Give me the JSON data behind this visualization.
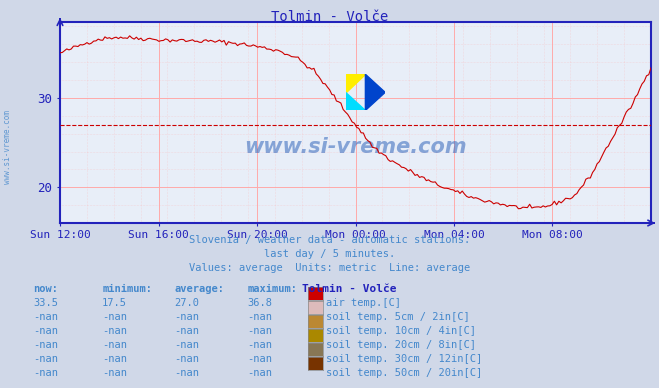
{
  "title": "Tolmin - Volče",
  "bg_color": "#d0d8e8",
  "plot_bg_color": "#e8eef8",
  "line_color": "#cc0000",
  "avg_line_value": 27.0,
  "y_min": 16,
  "y_max": 38.5,
  "yticks": [
    20,
    30
  ],
  "grid_color": "#ffaaaa",
  "text_color": "#4488cc",
  "axis_color": "#2222bb",
  "subtitle1": "Slovenia / weather data - automatic stations.",
  "subtitle2": "last day / 5 minutes.",
  "subtitle3": "Values: average  Units: metric  Line: average",
  "watermark": "www.si-vreme.com",
  "legend_title": "Tolmin - Volče",
  "legend_items": [
    {
      "label": "air temp.[C]",
      "color": "#cc0000"
    },
    {
      "label": "soil temp. 5cm / 2in[C]",
      "color": "#ddbbbb"
    },
    {
      "label": "soil temp. 10cm / 4in[C]",
      "color": "#bb8833"
    },
    {
      "label": "soil temp. 20cm / 8in[C]",
      "color": "#aa8800"
    },
    {
      "label": "soil temp. 30cm / 12in[C]",
      "color": "#887755"
    },
    {
      "label": "soil temp. 50cm / 20in[C]",
      "color": "#773300"
    }
  ],
  "table_headers": [
    "now:",
    "minimum:",
    "average:",
    "maximum:"
  ],
  "table_rows": [
    [
      "33.5",
      "17.5",
      "27.0",
      "36.8"
    ],
    [
      "-nan",
      "-nan",
      "-nan",
      "-nan"
    ],
    [
      "-nan",
      "-nan",
      "-nan",
      "-nan"
    ],
    [
      "-nan",
      "-nan",
      "-nan",
      "-nan"
    ],
    [
      "-nan",
      "-nan",
      "-nan",
      "-nan"
    ],
    [
      "-nan",
      "-nan",
      "-nan",
      "-nan"
    ]
  ],
  "x_labels": [
    "Sun 12:00",
    "Sun 16:00",
    "Sun 20:00",
    "Mon 00:00",
    "Mon 04:00",
    "Mon 08:00"
  ],
  "x_ticks_norm": [
    0.0,
    0.1667,
    0.3333,
    0.5,
    0.6667,
    0.8333
  ]
}
